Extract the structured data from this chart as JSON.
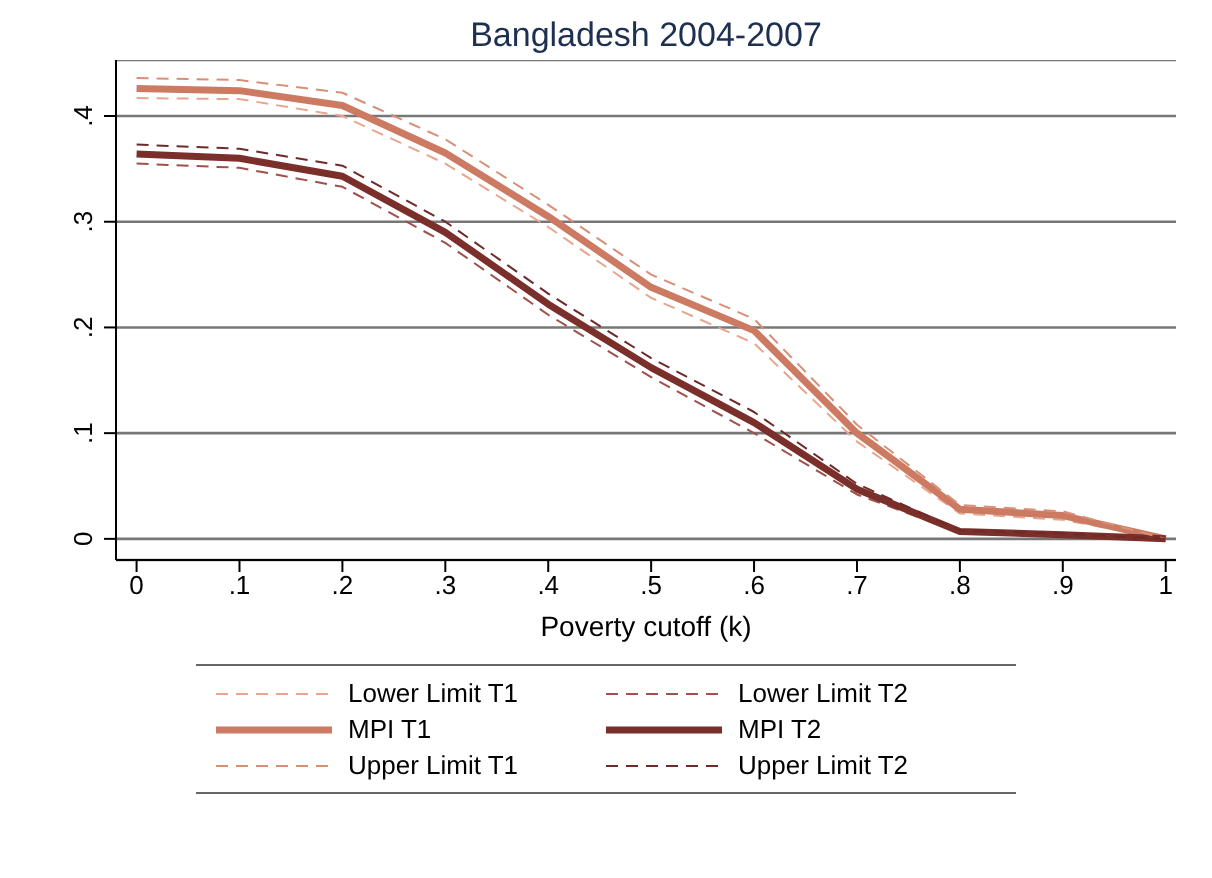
{
  "chart_data": {
    "type": "line",
    "title": "Bangladesh 2004-2007",
    "xlabel": "Poverty cutoff (k)",
    "x": [
      0,
      0.1,
      0.2,
      0.3,
      0.4,
      0.5,
      0.6,
      0.7,
      0.8,
      0.9,
      1
    ],
    "series": [
      {
        "name": "Lower Limit T1",
        "color": "#e8a58e",
        "line_style": "dashed",
        "values": [
          0.417,
          0.416,
          0.4,
          0.355,
          0.295,
          0.228,
          0.185,
          0.092,
          0.024,
          0.018,
          0
        ]
      },
      {
        "name": "Lower Limit T2",
        "color": "#a0504a",
        "line_style": "dashed",
        "values": [
          0.355,
          0.351,
          0.333,
          0.28,
          0.212,
          0.153,
          0.1,
          0.042,
          0.006,
          0.003,
          0
        ]
      },
      {
        "name": "MPI T1",
        "color": "#cd7a62",
        "line_style": "solid",
        "values": [
          0.426,
          0.424,
          0.41,
          0.365,
          0.305,
          0.238,
          0.197,
          0.1,
          0.028,
          0.022,
          0
        ]
      },
      {
        "name": "MPI T2",
        "color": "#7a2f2b",
        "line_style": "solid",
        "values": [
          0.364,
          0.36,
          0.343,
          0.29,
          0.222,
          0.162,
          0.11,
          0.047,
          0.007,
          0.004,
          0
        ]
      },
      {
        "name": "Upper Limit T1",
        "color": "#d98e76",
        "line_style": "dashed",
        "values": [
          0.436,
          0.434,
          0.422,
          0.378,
          0.316,
          0.25,
          0.208,
          0.108,
          0.032,
          0.026,
          0
        ]
      },
      {
        "name": "Upper Limit T2",
        "color": "#6e2a28",
        "line_style": "dashed",
        "values": [
          0.373,
          0.369,
          0.353,
          0.3,
          0.232,
          0.171,
          0.12,
          0.052,
          0.008,
          0.005,
          0
        ]
      }
    ],
    "xlim": [
      -0.02,
      1.01
    ],
    "xticks": [
      {
        "value": 0,
        "label": "0"
      },
      {
        "value": 0.1,
        "label": ".1"
      },
      {
        "value": 0.2,
        "label": ".2"
      },
      {
        "value": 0.3,
        "label": ".3"
      },
      {
        "value": 0.4,
        "label": ".4"
      },
      {
        "value": 0.5,
        "label": ".5"
      },
      {
        "value": 0.6,
        "label": ".6"
      },
      {
        "value": 0.7,
        "label": ".7"
      },
      {
        "value": 0.8,
        "label": ".8"
      },
      {
        "value": 0.9,
        "label": ".9"
      },
      {
        "value": 1,
        "label": "1"
      }
    ],
    "ylim": [
      -0.02,
      0.453
    ],
    "yticks": [
      {
        "value": 0,
        "label": "0"
      },
      {
        "value": 0.1,
        "label": ".1"
      },
      {
        "value": 0.2,
        "label": ".2"
      },
      {
        "value": 0.3,
        "label": ".3"
      },
      {
        "value": 0.4,
        "label": ".4"
      }
    ],
    "grid": "y",
    "legend": "bottom"
  }
}
